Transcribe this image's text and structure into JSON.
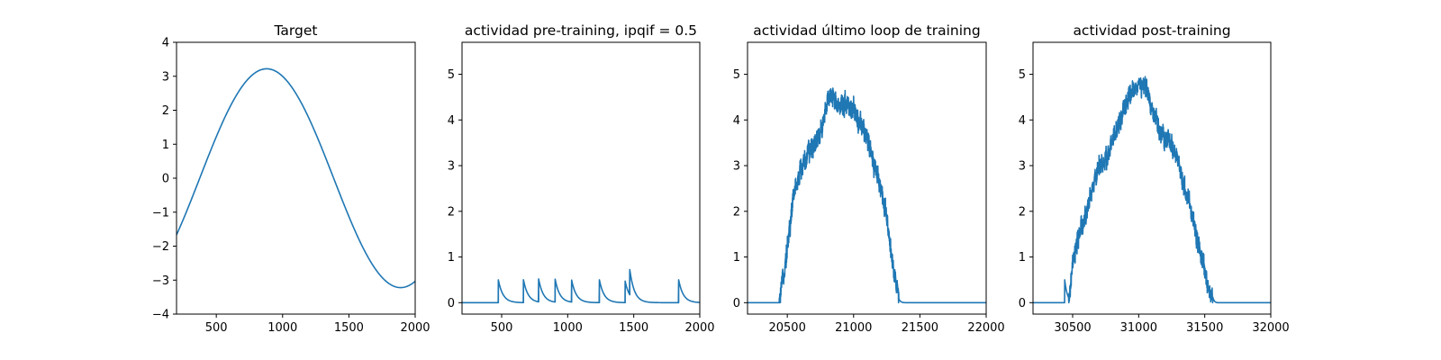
{
  "chart_data": [
    {
      "type": "line",
      "title": "Target",
      "xlim": [
        200,
        2000
      ],
      "ylim": [
        -4,
        4
      ],
      "xticks": [
        500,
        1000,
        1500,
        2000
      ],
      "yticks": [
        -4,
        -3,
        -2,
        -1,
        0,
        1,
        2,
        3,
        4
      ],
      "series": [
        {
          "color": "#1f77b4",
          "x": [
            200,
            300,
            400,
            500,
            600,
            700,
            800,
            880,
            960,
            1050,
            1150,
            1250,
            1350,
            1450,
            1550,
            1650,
            1750,
            1850,
            1890,
            1940,
            2000
          ],
          "y": [
            -1.72,
            -0.62,
            0.47,
            1.45,
            2.27,
            2.87,
            3.18,
            3.22,
            3.14,
            2.75,
            1.97,
            0.97,
            -0.12,
            -1.18,
            -2.1,
            -2.77,
            -3.13,
            -3.21,
            -3.22,
            -3.14,
            -2.98
          ]
        }
      ]
    },
    {
      "type": "line",
      "title": "actividad pre-training, ipqif = 0.5",
      "xlim": [
        200,
        2000
      ],
      "ylim": [
        -0.25,
        5.7
      ],
      "xticks": [
        500,
        1000,
        1500,
        2000
      ],
      "yticks": [
        0,
        1,
        2,
        3,
        4,
        5
      ],
      "baseline": 0,
      "spikes": [
        {
          "x": 475,
          "h": 0.5
        },
        {
          "x": 665,
          "h": 0.5
        },
        {
          "x": 780,
          "h": 0.5
        },
        {
          "x": 905,
          "h": 0.5
        },
        {
          "x": 1030,
          "h": 0.48
        },
        {
          "x": 1240,
          "h": 0.5
        },
        {
          "x": 1435,
          "h": 0.47
        },
        {
          "x": 1470,
          "h": 0.55
        },
        {
          "x": 1840,
          "h": 0.5
        }
      ],
      "decay": 35
    },
    {
      "type": "line",
      "title": "actividad último loop de training",
      "xlim": [
        20200,
        22000
      ],
      "ylim": [
        -0.25,
        5.7
      ],
      "xticks": [
        20500,
        21000,
        21500,
        22000
      ],
      "yticks": [
        0,
        1,
        2,
        3,
        4,
        5
      ],
      "start": 20440,
      "end": 21340,
      "envelope_x": [
        20200,
        20440,
        20470,
        20500,
        20550,
        20600,
        20650,
        20700,
        20750,
        20800,
        20850,
        20900,
        20950,
        21000,
        21050,
        21100,
        21150,
        21200,
        21250,
        21300,
        21340,
        21400,
        22000
      ],
      "envelope_y": [
        0,
        0,
        0.6,
        1.2,
        2.4,
        2.9,
        3.2,
        3.5,
        3.7,
        4.4,
        4.5,
        4.3,
        4.4,
        4.2,
        3.9,
        3.6,
        3.1,
        2.6,
        1.8,
        0.8,
        0.1,
        0,
        0
      ],
      "noise": 0.3
    },
    {
      "type": "line",
      "title": "actividad post-training",
      "xlim": [
        30200,
        32000
      ],
      "ylim": [
        -0.25,
        5.7
      ],
      "xticks": [
        30500,
        31000,
        31500,
        32000
      ],
      "yticks": [
        0,
        1,
        2,
        3,
        4,
        5
      ],
      "pre_spike": {
        "x": 30440,
        "h": 0.5
      },
      "start": 30470,
      "end": 31560,
      "envelope_x": [
        30200,
        30470,
        30500,
        30550,
        30600,
        30650,
        30700,
        30750,
        30800,
        30850,
        30900,
        30950,
        31000,
        31050,
        31100,
        31150,
        31200,
        31250,
        31300,
        31350,
        31400,
        31450,
        31500,
        31540,
        31600,
        32000
      ],
      "envelope_y": [
        0,
        0,
        0.8,
        1.5,
        1.9,
        2.5,
        3.0,
        3.1,
        3.5,
        3.9,
        4.3,
        4.6,
        4.8,
        4.7,
        4.3,
        3.8,
        3.6,
        3.5,
        3.0,
        2.5,
        2.0,
        1.3,
        0.7,
        0.2,
        0,
        0
      ],
      "noise": 0.28
    }
  ]
}
